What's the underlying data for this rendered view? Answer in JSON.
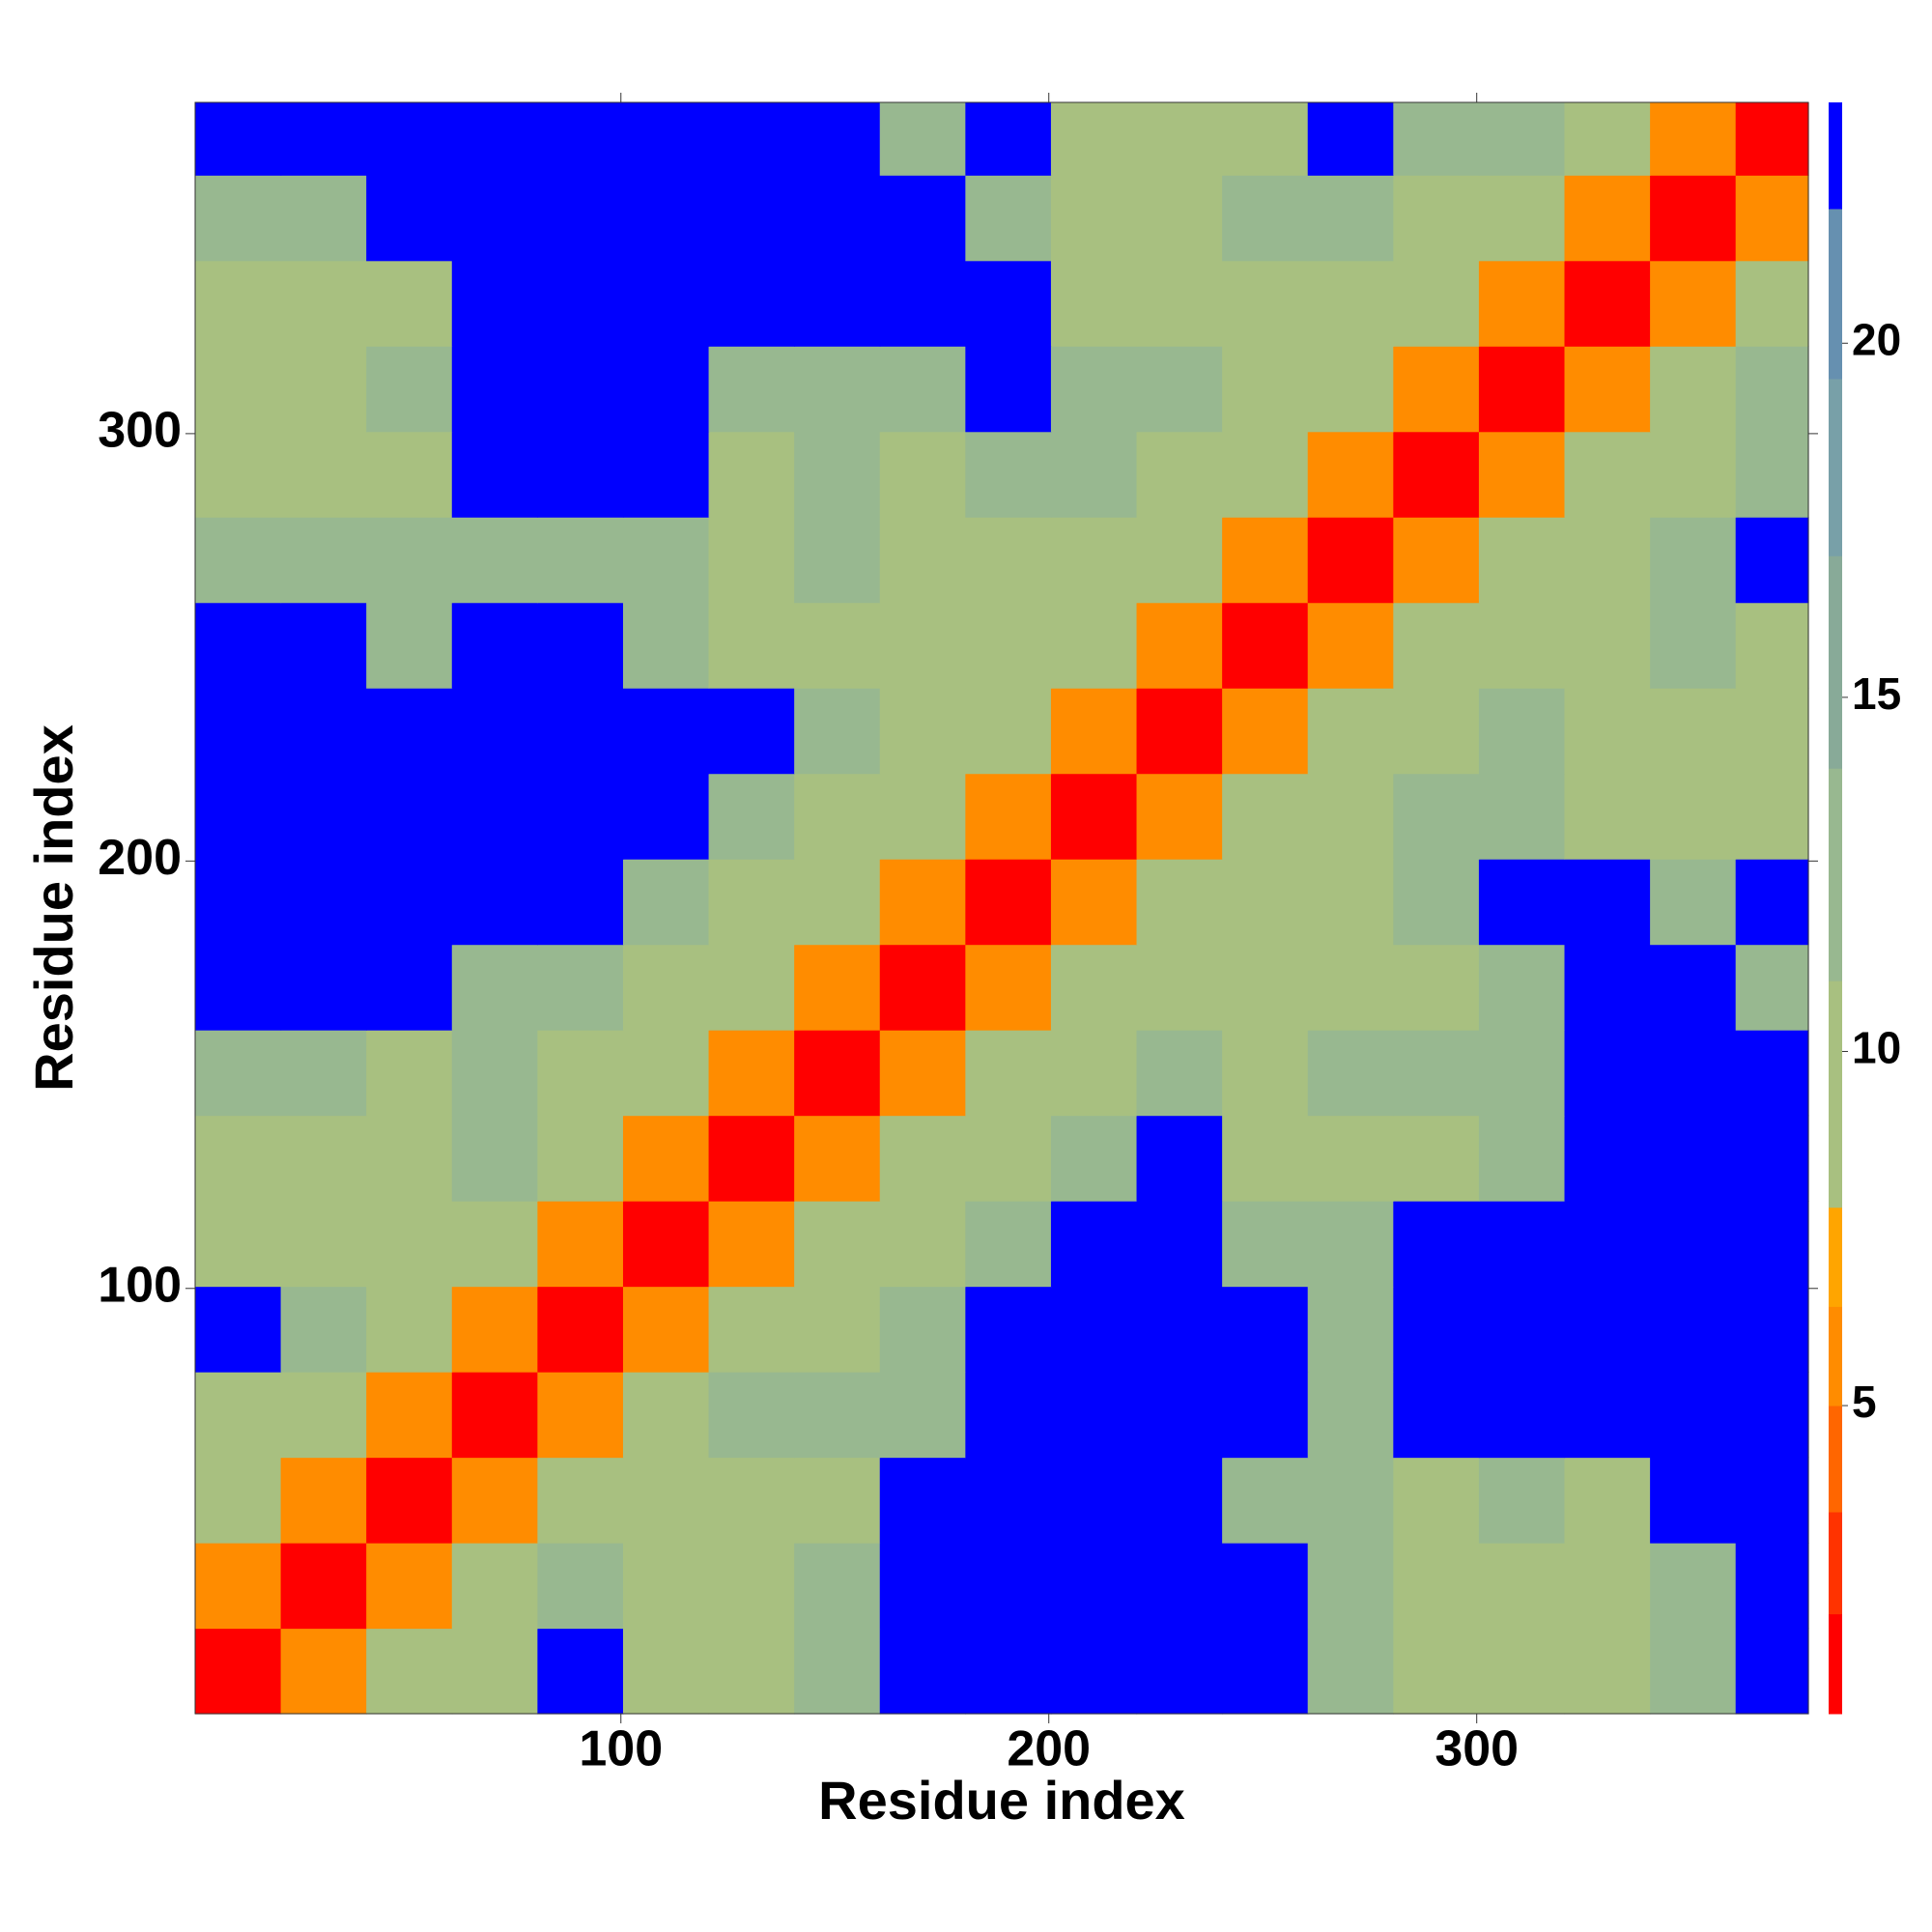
{
  "chart_data": {
    "type": "heatmap",
    "xlabel": "Residue index",
    "ylabel": "Residue index",
    "xlim": [
      0.5,
      377.5
    ],
    "ylim": [
      0.5,
      377.5
    ],
    "xticks": [
      100,
      200,
      300
    ],
    "yticks": [
      100,
      200,
      300
    ],
    "x_edges": [
      0.5,
      20.5,
      40.5,
      60.5,
      80.5,
      100.5,
      120.5,
      140.5,
      160.5,
      180.5,
      200.5,
      220.5,
      240.5,
      260.5,
      280.5,
      300.5,
      320.5,
      340.5,
      360.5,
      377.5
    ],
    "y_edges": [
      0.5,
      20.5,
      40.5,
      60.5,
      80.5,
      100.5,
      120.5,
      140.5,
      160.5,
      180.5,
      200.5,
      220.5,
      240.5,
      260.5,
      280.5,
      300.5,
      320.5,
      340.5,
      360.5,
      377.5
    ],
    "z": [
      [
        1,
        6,
        10,
        9,
        23,
        10,
        9,
        12,
        23,
        23,
        23,
        23,
        23,
        12,
        9,
        10,
        9,
        12,
        23
      ],
      [
        6,
        1,
        6,
        10,
        12,
        9,
        10,
        12,
        23,
        23,
        23,
        23,
        23,
        12,
        10,
        9,
        8,
        12,
        23
      ],
      [
        10,
        6,
        1,
        6,
        9,
        9,
        10,
        9,
        23,
        23,
        23,
        23,
        12,
        12,
        9,
        12,
        10,
        23,
        23
      ],
      [
        9,
        10,
        6,
        1,
        6,
        9,
        12,
        12,
        12,
        23,
        23,
        23,
        23,
        12,
        23,
        23,
        23,
        23,
        23
      ],
      [
        23,
        12,
        9,
        6,
        1,
        6,
        8,
        10,
        12,
        23,
        23,
        23,
        23,
        12,
        23,
        23,
        23,
        23,
        23
      ],
      [
        10,
        9,
        9,
        9,
        6,
        1,
        6,
        9,
        10,
        12,
        23,
        23,
        12,
        12,
        23,
        23,
        23,
        23,
        23
      ],
      [
        9,
        10,
        10,
        12,
        8,
        6,
        1,
        6,
        9,
        10,
        12,
        23,
        8,
        9,
        8,
        12,
        23,
        23,
        23
      ],
      [
        12,
        12,
        9,
        12,
        10,
        9,
        6,
        1,
        6,
        9,
        10,
        12,
        10,
        12,
        12,
        12,
        23,
        23,
        23
      ],
      [
        23,
        23,
        23,
        12,
        12,
        10,
        9,
        6,
        1,
        6,
        8,
        9,
        8,
        10,
        9,
        12,
        23,
        23,
        12
      ],
      [
        23,
        23,
        23,
        23,
        23,
        12,
        10,
        9,
        6,
        1,
        6,
        8,
        10,
        10,
        12,
        23,
        23,
        12,
        23
      ],
      [
        23,
        23,
        23,
        23,
        23,
        23,
        12,
        10,
        8,
        6,
        1,
        6,
        9,
        10,
        12,
        12,
        9,
        8,
        10
      ],
      [
        23,
        23,
        23,
        23,
        23,
        23,
        23,
        12,
        9,
        8,
        6,
        1,
        6,
        9,
        10,
        12,
        10,
        9,
        10
      ],
      [
        23,
        23,
        12,
        23,
        23,
        12,
        8,
        10,
        8,
        10,
        9,
        6,
        1,
        6,
        8,
        10,
        9,
        12,
        10
      ],
      [
        12,
        12,
        12,
        12,
        12,
        12,
        9,
        12,
        10,
        10,
        10,
        9,
        6,
        1,
        6,
        8,
        10,
        12,
        23
      ],
      [
        9,
        10,
        9,
        23,
        23,
        23,
        8,
        12,
        9,
        12,
        12,
        10,
        8,
        6,
        1,
        6,
        9,
        10,
        12
      ],
      [
        10,
        9,
        12,
        23,
        23,
        23,
        12,
        12,
        12,
        23,
        12,
        12,
        10,
        8,
        6,
        1,
        6,
        9,
        12
      ],
      [
        9,
        8,
        10,
        23,
        23,
        23,
        23,
        23,
        23,
        23,
        9,
        10,
        9,
        10,
        9,
        6,
        1,
        6,
        9
      ],
      [
        12,
        12,
        23,
        23,
        23,
        23,
        23,
        23,
        23,
        12,
        8,
        9,
        12,
        12,
        10,
        9,
        6,
        1,
        6
      ],
      [
        23,
        23,
        23,
        23,
        23,
        23,
        23,
        23,
        12,
        23,
        10,
        10,
        10,
        23,
        12,
        12,
        9,
        6,
        1
      ]
    ],
    "colorbar": {
      "clim": [
        0.65,
        23.4
      ],
      "ticks": [
        5,
        10,
        15,
        20
      ],
      "levels": [
        0.65,
        2.06,
        3.5,
        5,
        6.4,
        7.8,
        11,
        14,
        17,
        19.5,
        21.9,
        23.4
      ],
      "colors": [
        "#ff0000",
        "#ff3300",
        "#ff6600",
        "#ff8c00",
        "#ffa500",
        "#a8c080",
        "#98b890",
        "#88aa98",
        "#78a0a8",
        "#6690b0",
        "#0000ff"
      ]
    }
  }
}
